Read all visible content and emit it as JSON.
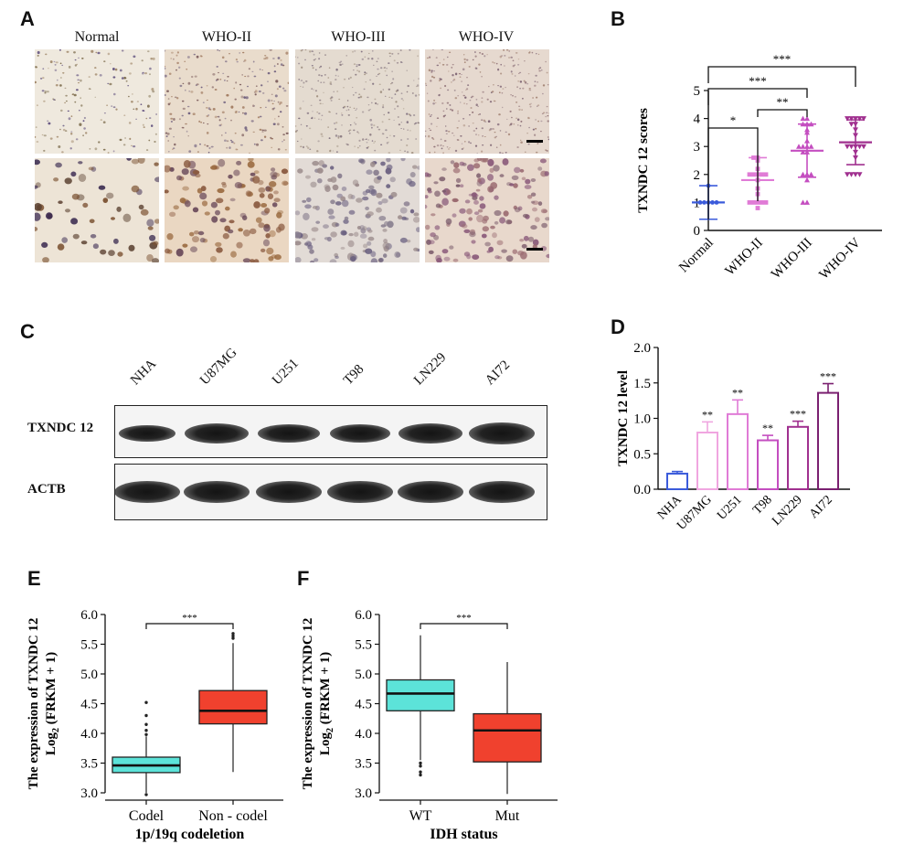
{
  "panels": {
    "A": {
      "letter": "A",
      "columns": [
        "Normal",
        "WHO-II",
        "WHO-III",
        "WHO-IV"
      ]
    },
    "B": {
      "letter": "B"
    },
    "C": {
      "letter": "C",
      "lanes": [
        "NHA",
        "U87MG",
        "U251",
        "T98",
        "LN229",
        "AI72"
      ],
      "rows": [
        "TXNDC 12",
        "ACTB"
      ]
    },
    "D": {
      "letter": "D"
    },
    "E": {
      "letter": "E"
    },
    "F": {
      "letter": "F"
    }
  },
  "chart_data": [
    {
      "id": "B",
      "type": "scatter",
      "categories": [
        "Normal",
        "WHO-II",
        "WHO-III",
        "WHO-IV"
      ],
      "ylabel": "TXNDC 12 scores",
      "ylim": [
        0,
        5
      ],
      "yticks": [
        0,
        1,
        2,
        3,
        4,
        5
      ],
      "colors": [
        "#3b5bdb",
        "#e07bd6",
        "#c44ec0",
        "#a0308f"
      ],
      "markers": [
        "circle",
        "square",
        "triangle-up",
        "triangle-down"
      ],
      "series": [
        {
          "name": "Normal",
          "mean": 1.0,
          "sd": 0.6,
          "points": [
            1.0,
            1.0,
            1.0,
            1.0,
            1.0,
            1.6
          ]
        },
        {
          "name": "WHO-II",
          "mean": 1.8,
          "sd": 0.8,
          "points": [
            1.0,
            1.0,
            1.0,
            1.0,
            1.3,
            1.5,
            1.8,
            2.0,
            2.0,
            2.0,
            2.0,
            2.0,
            2.2,
            2.5,
            2.6,
            2.6,
            1.0,
            0.8
          ]
        },
        {
          "name": "WHO-III",
          "mean": 2.85,
          "sd": 0.95,
          "points": [
            1.0,
            1.0,
            1.8,
            2.0,
            2.0,
            2.0,
            2.8,
            2.8,
            3.0,
            3.0,
            3.0,
            3.0,
            3.2,
            3.5,
            3.6,
            3.8,
            3.8,
            3.8,
            4.0,
            4.0
          ]
        },
        {
          "name": "WHO-IV",
          "mean": 3.15,
          "sd": 0.8,
          "points": [
            2.0,
            2.0,
            2.0,
            2.0,
            2.6,
            2.8,
            3.0,
            3.0,
            3.0,
            3.0,
            3.0,
            3.4,
            3.6,
            3.8,
            3.8,
            4.0,
            4.0,
            4.0,
            4.0,
            4.0
          ]
        }
      ],
      "annotations": [
        {
          "from": "Normal",
          "to": "WHO-II",
          "label": "*"
        },
        {
          "from": "WHO-II",
          "to": "WHO-III",
          "label": "**"
        },
        {
          "from": "Normal",
          "to": "WHO-III",
          "label": "***"
        },
        {
          "from": "Normal",
          "to": "WHO-IV",
          "label": "***"
        }
      ]
    },
    {
      "id": "D",
      "type": "bar",
      "categories": [
        "NHA",
        "U87MG",
        "U251",
        "T98",
        "LN229",
        "AI72"
      ],
      "values": [
        0.22,
        0.8,
        1.06,
        0.69,
        0.88,
        1.36
      ],
      "errors": [
        0.03,
        0.15,
        0.2,
        0.07,
        0.08,
        0.13
      ],
      "significance": [
        "",
        "**",
        "**",
        "**",
        "***",
        "***"
      ],
      "colors": [
        "#3b5bdb",
        "#f0a6e0",
        "#e07bd6",
        "#c44ec0",
        "#a0308f",
        "#7a2070"
      ],
      "ylabel": "TXNDC 12 level",
      "ylim": [
        0,
        2.0
      ],
      "yticks": [
        "0.0",
        "0.5",
        "1.0",
        "1.5",
        "2.0"
      ]
    },
    {
      "id": "E",
      "type": "box",
      "categories": [
        "Codel",
        "Non - codel"
      ],
      "xlabel": "1p/19q codeletion",
      "ylabel": "The expression of TXNDC 12",
      "ylabel2": "Log2 (FRKM + 1)",
      "ylim": [
        3.0,
        6.0
      ],
      "yticks": [
        "3.0",
        "3.5",
        "4.0",
        "4.5",
        "5.0",
        "5.5",
        "6.0"
      ],
      "colors": [
        "#5ce3d9",
        "#f0412e"
      ],
      "boxes": [
        {
          "q1": 3.34,
          "median": 3.46,
          "q3": 3.6,
          "whisker_low": 3.0,
          "whisker_high": 3.95,
          "outliers": [
            3.98,
            4.05,
            4.15,
            4.3,
            4.52,
            2.97
          ]
        },
        {
          "q1": 4.16,
          "median": 4.38,
          "q3": 4.72,
          "whisker_low": 3.35,
          "whisker_high": 5.52,
          "outliers": [
            5.6,
            5.64,
            5.68
          ]
        }
      ],
      "annotation": "***"
    },
    {
      "id": "F",
      "type": "box",
      "categories": [
        "WT",
        "Mut"
      ],
      "xlabel": "IDH status",
      "ylabel": "The expression of TXNDC 12",
      "ylabel2": "Log2 (FRKM + 1)",
      "ylim": [
        3.0,
        6.0
      ],
      "yticks": [
        "3.0",
        "3.5",
        "4.0",
        "4.5",
        "5.0",
        "5.5",
        "6.0"
      ],
      "colors": [
        "#5ce3d9",
        "#f0412e"
      ],
      "boxes": [
        {
          "q1": 4.38,
          "median": 4.67,
          "q3": 4.9,
          "whisker_low": 3.55,
          "whisker_high": 5.65,
          "outliers": [
            3.5,
            3.45,
            3.35,
            3.3
          ]
        },
        {
          "q1": 3.52,
          "median": 4.05,
          "q3": 4.33,
          "whisker_low": 2.98,
          "whisker_high": 5.2,
          "outliers": []
        }
      ],
      "annotation": "***"
    }
  ]
}
